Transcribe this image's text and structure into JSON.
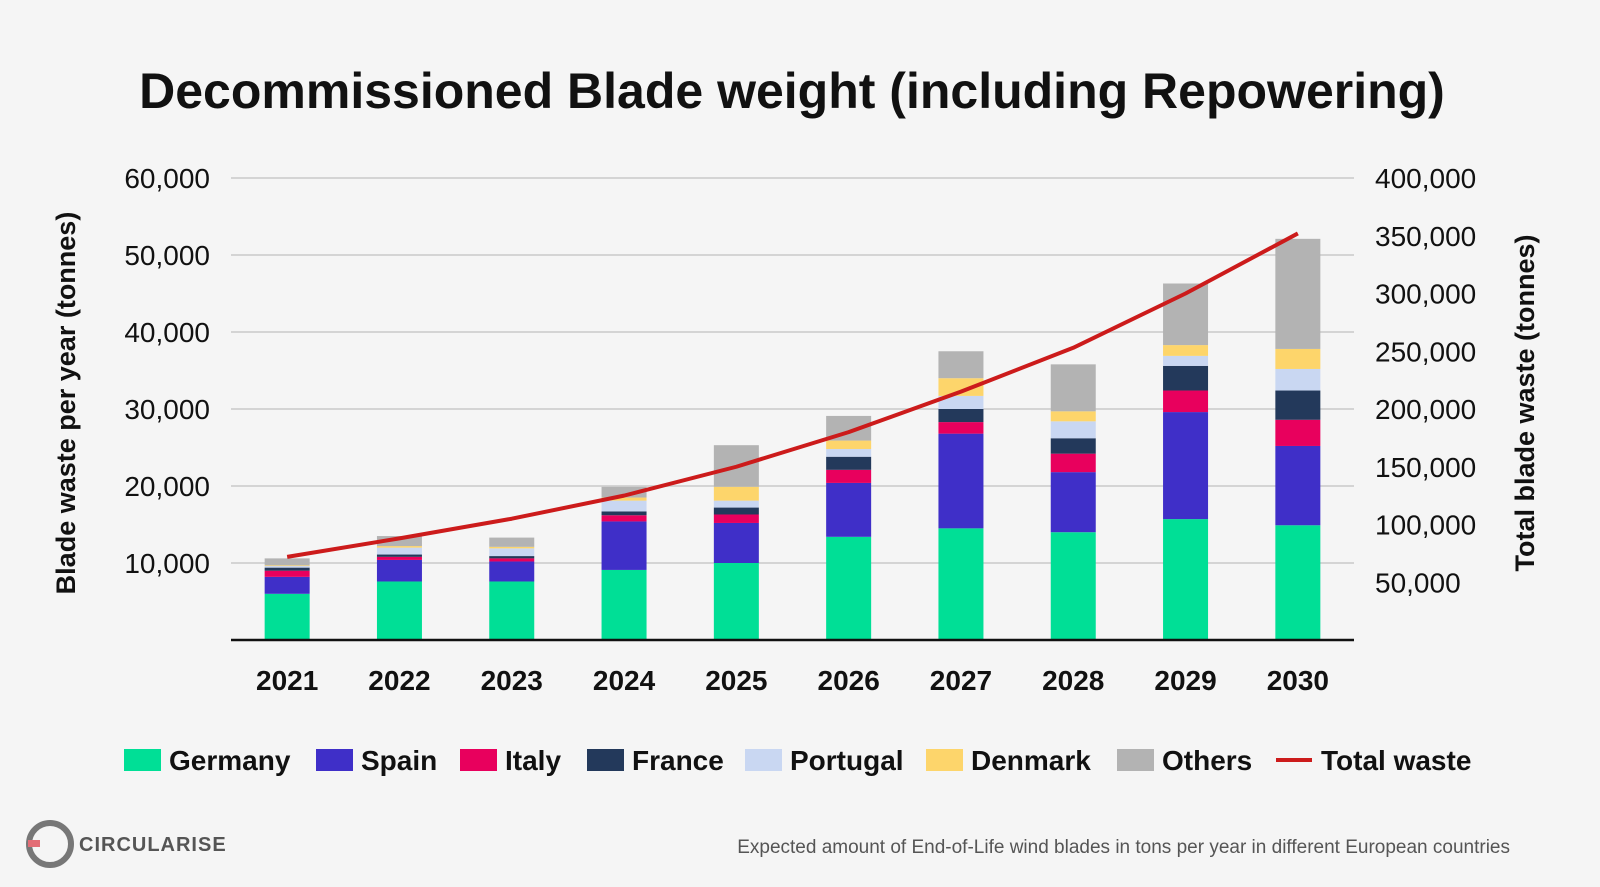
{
  "chart_data": {
    "type": "bar",
    "stacked": true,
    "title": "Decommissioned Blade weight (including Repowering)",
    "ylabel": "Blade waste per year (tonnes)",
    "y2label": "Total blade waste (tonnes)",
    "ylim": [
      0,
      60000
    ],
    "y2lim": [
      0,
      400000
    ],
    "yticks": [
      "10,000",
      "20,000",
      "30,000",
      "40,000",
      "50,000",
      "60,000"
    ],
    "y2ticks": [
      "50,000",
      "100,000",
      "150,000",
      "200,000",
      "250,000",
      "300,000",
      "350,000",
      "400,000"
    ],
    "categories": [
      "2021",
      "2022",
      "2023",
      "2024",
      "2025",
      "2026",
      "2027",
      "2028",
      "2029",
      "2030"
    ],
    "grid": true,
    "legend_position": "bottom",
    "series": [
      {
        "name": "Germany",
        "color": "#00df96",
        "values": [
          6000,
          7600,
          7600,
          9100,
          10000,
          13400,
          14500,
          14000,
          15700,
          14900
        ]
      },
      {
        "name": "Spain",
        "color": "#3f2fc8",
        "values": [
          2200,
          2800,
          2600,
          6300,
          5200,
          7000,
          12300,
          7800,
          13900,
          10300
        ]
      },
      {
        "name": "Italy",
        "color": "#e8005d",
        "values": [
          800,
          400,
          400,
          800,
          1100,
          1700,
          1500,
          2400,
          2800,
          3400
        ]
      },
      {
        "name": "France",
        "color": "#23395b",
        "values": [
          400,
          300,
          300,
          500,
          900,
          1700,
          1700,
          2000,
          3200,
          3800
        ]
      },
      {
        "name": "Portugal",
        "color": "#c9d7f2",
        "values": [
          200,
          900,
          1000,
          1400,
          900,
          1000,
          1700,
          2200,
          1300,
          2800
        ]
      },
      {
        "name": "Denmark",
        "color": "#fdd56b",
        "values": [
          100,
          200,
          200,
          400,
          1800,
          1100,
          2300,
          1300,
          1400,
          2600
        ]
      },
      {
        "name": "Others",
        "color": "#b3b3b3",
        "values": [
          900,
          1300,
          1200,
          1400,
          5400,
          3200,
          3500,
          6100,
          8000,
          14300
        ]
      }
    ],
    "line": {
      "name": "Total waste",
      "color": "#cc1b1b",
      "values": [
        72000,
        88000,
        105000,
        125000,
        150000,
        180000,
        215000,
        253000,
        300000,
        352000
      ]
    }
  },
  "footer": {
    "brand": "CIRCULARISE",
    "caption": "Expected amount of End-of-Life wind blades in tons per year in different European countries"
  }
}
